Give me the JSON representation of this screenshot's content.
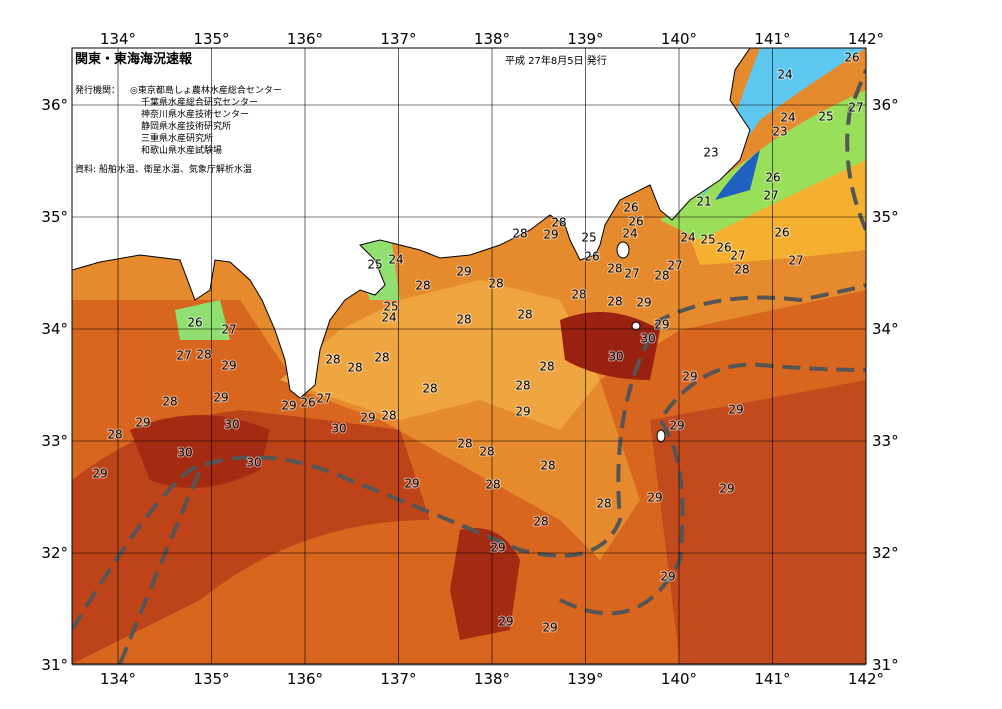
{
  "header": {
    "title": "関東・東海海況速報",
    "date": "平成 27年8月5日 発行",
    "issuer_label": "発行機関：",
    "issuers": [
      "◎東京都島しょ農林水産総合センター",
      "千葉県水産総合研究センター",
      "神奈川県水産技術センター",
      "静岡県水産技術研究所",
      "三重県水産研究所",
      "和歌山県水産試験場"
    ],
    "source": "資料: 船舶水温、衛星水温、気象庁解析水温"
  },
  "map": {
    "lon_labels": [
      "134°",
      "135°",
      "136°",
      "137°",
      "138°",
      "139°",
      "140°",
      "141°",
      "142°"
    ],
    "lat_labels": [
      "36°",
      "35°",
      "34°",
      "33°",
      "32°",
      "31°"
    ],
    "temperature_labels": [
      26,
      24,
      27,
      24,
      25,
      23,
      23,
      26,
      27,
      21,
      26,
      28,
      28,
      29,
      26,
      25,
      24,
      24,
      25,
      26,
      26,
      27,
      28,
      27,
      26,
      27,
      28,
      27,
      28,
      28,
      28,
      29,
      29,
      30,
      30,
      29,
      29,
      29,
      29,
      29,
      29,
      28,
      28,
      28,
      28,
      28,
      28,
      29,
      28,
      28,
      28,
      28,
      28,
      29,
      28,
      28,
      28,
      28,
      28,
      25,
      24,
      25,
      24,
      29,
      29,
      29,
      29,
      29,
      28,
      30,
      27,
      26,
      29,
      30,
      30,
      30,
      29,
      29,
      28,
      29,
      28,
      29,
      26,
      27,
      27,
      28
    ]
  }
}
